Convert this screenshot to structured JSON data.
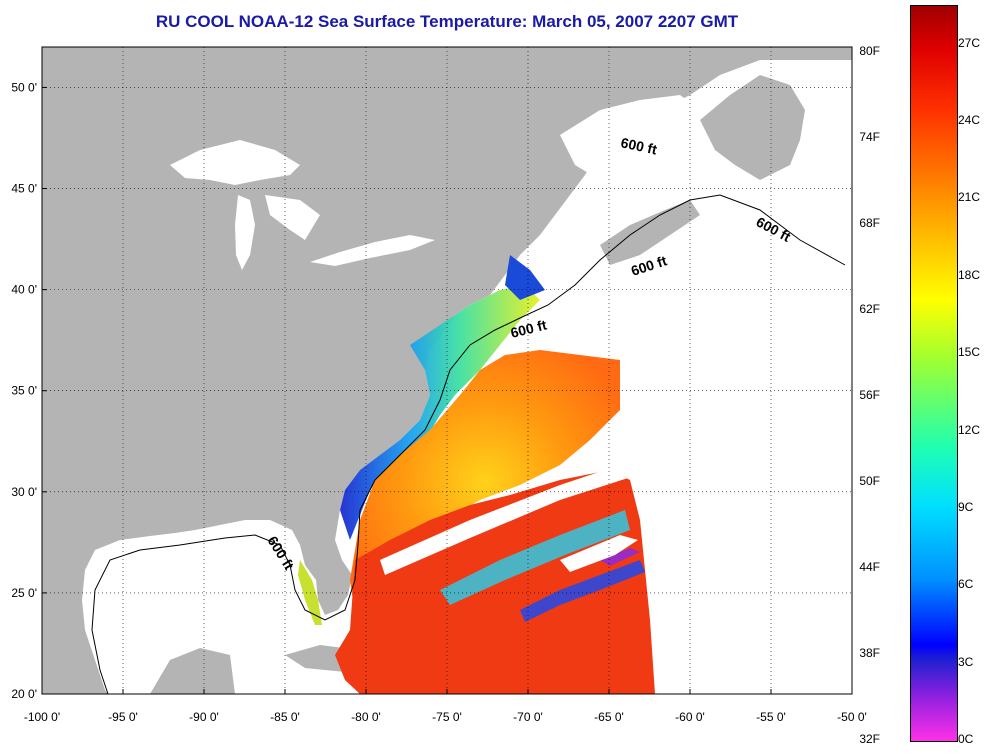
{
  "title": "RU COOL  NOAA-12  Sea Surface Temperature:  March 05, 2007 2207 GMT",
  "map": {
    "lon_range": [
      -100,
      -50
    ],
    "lat_range": [
      20,
      52
    ],
    "lon_ticks": [
      "-100 0'",
      "-95 0'",
      "-90 0'",
      "-85 0'",
      "-80 0'",
      "-75 0'",
      "-70 0'",
      "-65 0'",
      "-60 0'",
      "-55 0'",
      "-50 0'"
    ],
    "lat_ticks": [
      "20 0'",
      "25 0'",
      "30 0'",
      "35 0'",
      "40 0'",
      "45 0'",
      "50 0'"
    ],
    "isobath_labels": [
      "600 ft",
      "600 ft",
      "600 ft",
      "600 ft",
      "600 ft"
    ],
    "land_color": "#b4b4b4",
    "grid": true
  },
  "colorbar": {
    "fahrenheit_ticks": [
      "32F",
      "38F",
      "44F",
      "50F",
      "56F",
      "62F",
      "68F",
      "74F",
      "80F"
    ],
    "celsius_ticks": [
      "0C",
      "3C",
      "6C",
      "9C",
      "12C",
      "15C",
      "18C",
      "21C",
      "24C",
      "27C"
    ],
    "range_c": [
      0,
      28.5
    ]
  }
}
